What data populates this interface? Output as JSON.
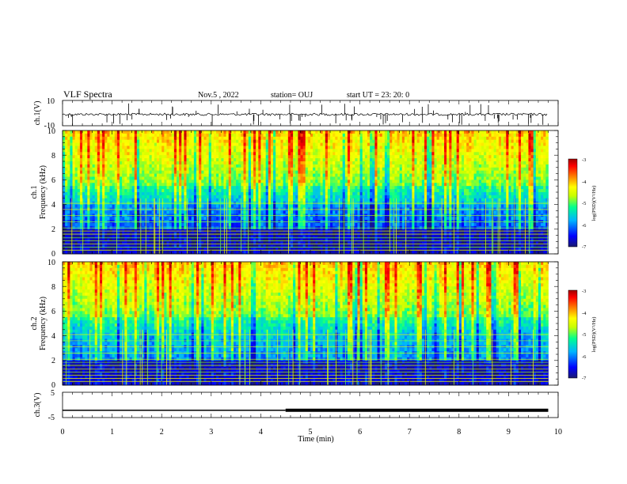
{
  "header": {
    "title": "VLF Spectra",
    "date": "Nov.5 , 2022",
    "station": "station= OUJ",
    "start": "start UT = 23: 20: 0"
  },
  "x_axis": {
    "label": "Time (min)",
    "ticks": [
      "0",
      "1",
      "2",
      "3",
      "4",
      "5",
      "6",
      "7",
      "8",
      "9",
      "10"
    ]
  },
  "ch1": {
    "ylabel": "ch.1(V)",
    "ticks": [
      "10",
      "-10"
    ]
  },
  "spec1": {
    "ylabel_line1": "ch.1",
    "ylabel_line2": "Frequency (kHz)",
    "ticks": [
      "0",
      "2",
      "4",
      "6",
      "8",
      "10"
    ]
  },
  "spec2": {
    "ylabel_line1": "ch.2",
    "ylabel_line2": "Frequency (kHz)",
    "ticks": [
      "0",
      "2",
      "4",
      "6",
      "8",
      "10"
    ]
  },
  "ch3": {
    "ylabel": "ch.3(V)",
    "ticks": [
      "5",
      "-5"
    ]
  },
  "colorbar": {
    "label": "log(PSD)(V²/Hz)",
    "ticks": [
      "-3",
      "-4",
      "-5",
      "-6",
      "-7"
    ],
    "colors": [
      "#1a1a6e",
      "#0000ff",
      "#00b4ff",
      "#00ff90",
      "#c8ff00",
      "#ffff00",
      "#ff8000",
      "#ff0000",
      "#a00000"
    ]
  },
  "chart_data": [
    {
      "type": "line",
      "title": "VLF Spectra",
      "ylabel": "ch.1(V)",
      "xlabel": "Time (min)",
      "xlim": [
        0,
        10
      ],
      "ylim": [
        -10,
        10
      ],
      "series": [
        {
          "x": [
            0,
            9.8
          ],
          "values": [
            -1,
            -1
          ]
        }
      ]
    },
    {
      "type": "heatmap",
      "ylabel": "Frequency (kHz)",
      "xlabel": "Time (min)",
      "xlim": [
        0,
        10
      ],
      "ylim": [
        0,
        10
      ],
      "zlim": [
        -7,
        -3
      ],
      "data_end_min": 9.8
    },
    {
      "type": "heatmap",
      "ylabel": "Frequency (kHz)",
      "xlabel": "Time (min)",
      "xlim": [
        0,
        10
      ],
      "ylim": [
        0,
        10
      ],
      "zlim": [
        -7,
        -3
      ],
      "data_end_min": 9.8
    },
    {
      "type": "line",
      "ylabel": "ch.3(V)",
      "xlabel": "Time (min)",
      "xlim": [
        0,
        10
      ],
      "ylim": [
        -5,
        5
      ],
      "series": [
        {
          "x": [
            0,
            4.5,
            4.5,
            9.8
          ],
          "values": [
            -2.1,
            -2.1,
            -2.1,
            -2.1
          ]
        }
      ]
    }
  ]
}
